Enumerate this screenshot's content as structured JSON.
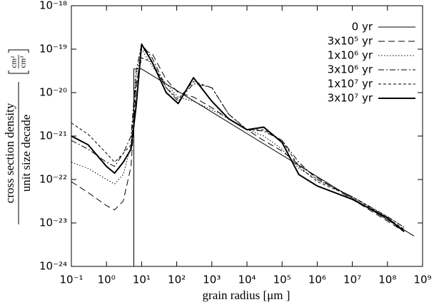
{
  "chart_data": {
    "type": "line",
    "xscale": "log",
    "yscale": "log",
    "xlabel": "grain radius [μm ]",
    "ylabel": {
      "numerator": "cross section density",
      "denominator": "unit size decade",
      "unit_numerator": "cm²",
      "unit_denominator": "cm³"
    },
    "xlim": [
      0.1,
      1000000000.0
    ],
    "ylim": [
      1e-24,
      1e-18
    ],
    "xticks": [
      {
        "value": 0.1,
        "label": "10⁻¹"
      },
      {
        "value": 1,
        "label": "10⁰"
      },
      {
        "value": 10,
        "label": "10¹"
      },
      {
        "value": 100,
        "label": "10²"
      },
      {
        "value": 1000,
        "label": "10³"
      },
      {
        "value": 10000,
        "label": "10⁴"
      },
      {
        "value": 100000,
        "label": "10⁵"
      },
      {
        "value": 1000000,
        "label": "10⁶"
      },
      {
        "value": 10000000,
        "label": "10⁷"
      },
      {
        "value": 100000000,
        "label": "10⁸"
      },
      {
        "value": 1000000000,
        "label": "10⁹"
      }
    ],
    "yticks": [
      {
        "value": 1e-24,
        "label": "10⁻²⁴"
      },
      {
        "value": 1e-23,
        "label": "10⁻²³"
      },
      {
        "value": 1e-22,
        "label": "10⁻²²"
      },
      {
        "value": 1e-21,
        "label": "10⁻²¹"
      },
      {
        "value": 1e-20,
        "label": "10⁻²⁰"
      },
      {
        "value": 1e-19,
        "label": "10⁻¹⁹"
      },
      {
        "value": 1e-18,
        "label": "10⁻¹⁸"
      }
    ],
    "legend": "upper right",
    "series": [
      {
        "name": "0 yr",
        "color": "#000000",
        "dash": "solid",
        "width": 1,
        "x": [
          6,
          6,
          10,
          570000000
        ],
        "values": [
          1e-24,
          3.5e-20,
          3.5e-20,
          5e-24
        ]
      },
      {
        "name": "3x10⁵ yr",
        "color": "#000000",
        "dash": "long-dash",
        "width": 1,
        "x": [
          0.1,
          0.3,
          1,
          1.7,
          3,
          5,
          7,
          10,
          20,
          50,
          110,
          300,
          1000,
          3000,
          10000,
          30000,
          100000,
          300000,
          1000000,
          10000000,
          100000000,
          300000000
        ],
        "values": [
          8.9e-23,
          5e-23,
          2.5e-23,
          2e-23,
          3.2e-23,
          2e-22,
          1.3e-20,
          1e-19,
          7.9e-20,
          2e-20,
          1e-20,
          7.9e-21,
          4.5e-21,
          2.5e-21,
          1.4e-21,
          7.9e-22,
          4.5e-22,
          2.2e-22,
          1.1e-22,
          3.5e-23,
          1.1e-23,
          6.3e-24
        ]
      },
      {
        "name": "1x10⁶ yr",
        "color": "#000000",
        "dash": "dotted",
        "width": 1,
        "x": [
          0.1,
          0.3,
          1,
          1.7,
          3,
          5,
          7,
          10,
          20,
          50,
          110,
          300,
          1000,
          3000,
          10000,
          30000,
          100000,
          300000,
          1000000,
          10000000,
          100000000,
          300000000
        ],
        "values": [
          2.5e-22,
          1.8e-22,
          1e-22,
          7.9e-23,
          1.3e-22,
          6.3e-22,
          2.5e-20,
          1e-19,
          4e-20,
          1.6e-20,
          7.9e-21,
          6.3e-21,
          4e-21,
          2.5e-21,
          1.4e-21,
          1e-21,
          5e-22,
          1.8e-22,
          1e-22,
          4e-23,
          1.4e-23,
          7.9e-24
        ]
      },
      {
        "name": "3x10⁶ yr",
        "color": "#000000",
        "dash": "dash-dot",
        "width": 1,
        "x": [
          0.1,
          0.3,
          1,
          1.7,
          3,
          5,
          7,
          10,
          20,
          50,
          110,
          300,
          1000,
          3000,
          10000,
          30000,
          100000,
          300000,
          1000000,
          10000000,
          100000000,
          300000000
        ],
        "values": [
          7.9e-22,
          5e-22,
          2.5e-22,
          2e-22,
          4e-22,
          1e-21,
          3.2e-20,
          1.3e-19,
          6.3e-20,
          1.3e-20,
          6.3e-21,
          1.6e-20,
          1.3e-20,
          3.2e-21,
          1.4e-21,
          1.3e-21,
          7.9e-22,
          2.5e-22,
          1e-22,
          4e-23,
          1.4e-23,
          7.9e-24
        ]
      },
      {
        "name": "1x10⁷ yr",
        "color": "#000000",
        "dash": "short-dash",
        "width": 1,
        "x": [
          0.1,
          0.3,
          1,
          1.7,
          3,
          5,
          7,
          10,
          20,
          50,
          110,
          300,
          1000,
          3000,
          10000,
          30000,
          100000,
          300000,
          1000000,
          10000000,
          100000000,
          300000000
        ],
        "values": [
          2e-21,
          1.1e-21,
          4e-22,
          2.5e-22,
          4e-22,
          6.3e-22,
          1.6e-20,
          6.3e-20,
          5e-20,
          1.3e-20,
          7.1e-21,
          1.8e-20,
          1.3e-20,
          3.2e-21,
          1.4e-21,
          1.4e-21,
          7.9e-22,
          2e-22,
          8.9e-23,
          4e-23,
          1.3e-23,
          7.1e-24
        ]
      },
      {
        "name": "3x10⁷ yr",
        "color": "#000000",
        "dash": "solid",
        "width": 2,
        "x": [
          0.1,
          0.3,
          1,
          1.7,
          3,
          5,
          7,
          10,
          20,
          50,
          110,
          300,
          1000,
          3000,
          10000,
          30000,
          100000,
          300000,
          1000000,
          10000000,
          100000000,
          300000000
        ],
        "values": [
          1e-21,
          6.3e-22,
          2e-22,
          1.4e-22,
          2.5e-22,
          5e-22,
          5e-21,
          1.3e-19,
          5e-20,
          1e-20,
          5.6e-21,
          2.2e-20,
          6.3e-21,
          2.5e-21,
          1.4e-21,
          1.6e-21,
          7.1e-22,
          1.3e-22,
          7.1e-23,
          3.5e-23,
          1.3e-23,
          6.3e-24
        ]
      }
    ]
  }
}
